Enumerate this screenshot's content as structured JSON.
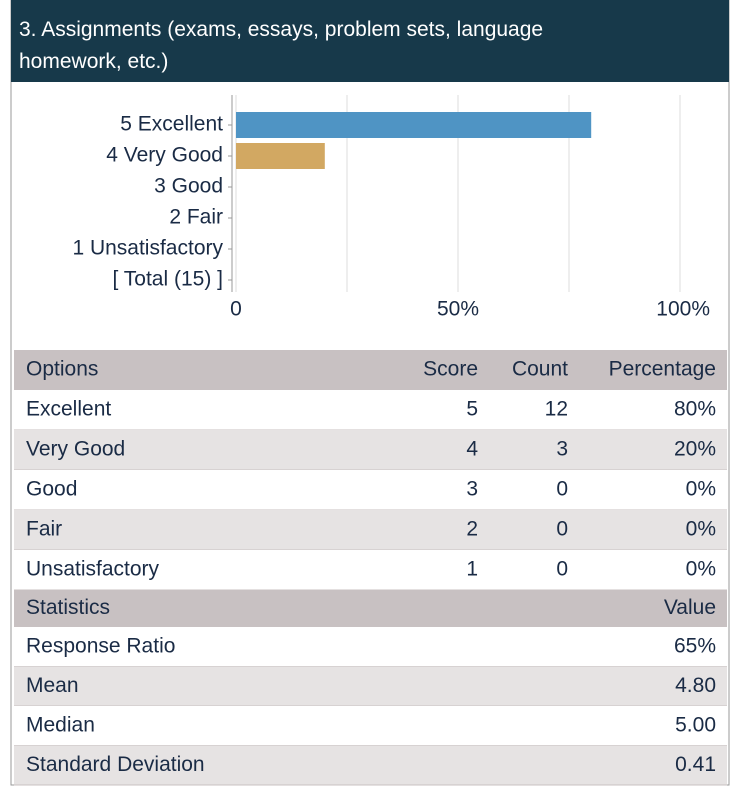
{
  "header": {
    "title": "3. Assignments (exams, essays, problem sets, language homework, etc.)"
  },
  "chart_data": {
    "type": "bar",
    "orientation": "horizontal",
    "categories": [
      "5 Excellent",
      "4 Very Good",
      "3 Good",
      "2 Fair",
      "1 Unsatisfactory",
      "[ Total (15) ]"
    ],
    "values": [
      80,
      20,
      0,
      0,
      0,
      null
    ],
    "colors": [
      "#4f94c4",
      "#d2a862",
      null,
      null,
      null,
      null
    ],
    "xlim": [
      0,
      100
    ],
    "xticks": [
      0,
      {
        "value": 50,
        "label": "50%"
      },
      {
        "value": 100,
        "label": "100%"
      }
    ],
    "minor_xticks": [
      25,
      75
    ],
    "grid": true
  },
  "options_table": {
    "header": [
      "Options",
      "Score",
      "Count",
      "Percentage"
    ],
    "rows": [
      [
        "Excellent",
        "5",
        "12",
        "80%"
      ],
      [
        "Very Good",
        "4",
        "3",
        "20%"
      ],
      [
        "Good",
        "3",
        "0",
        "0%"
      ],
      [
        "Fair",
        "2",
        "0",
        "0%"
      ],
      [
        "Unsatisfactory",
        "1",
        "0",
        "0%"
      ]
    ]
  },
  "statistics_table": {
    "header": [
      "Statistics",
      "Value"
    ],
    "rows": [
      [
        "Response Ratio",
        "65%"
      ],
      [
        "Mean",
        "4.80"
      ],
      [
        "Median",
        "5.00"
      ],
      [
        "Standard Deviation",
        "0.41"
      ]
    ]
  }
}
